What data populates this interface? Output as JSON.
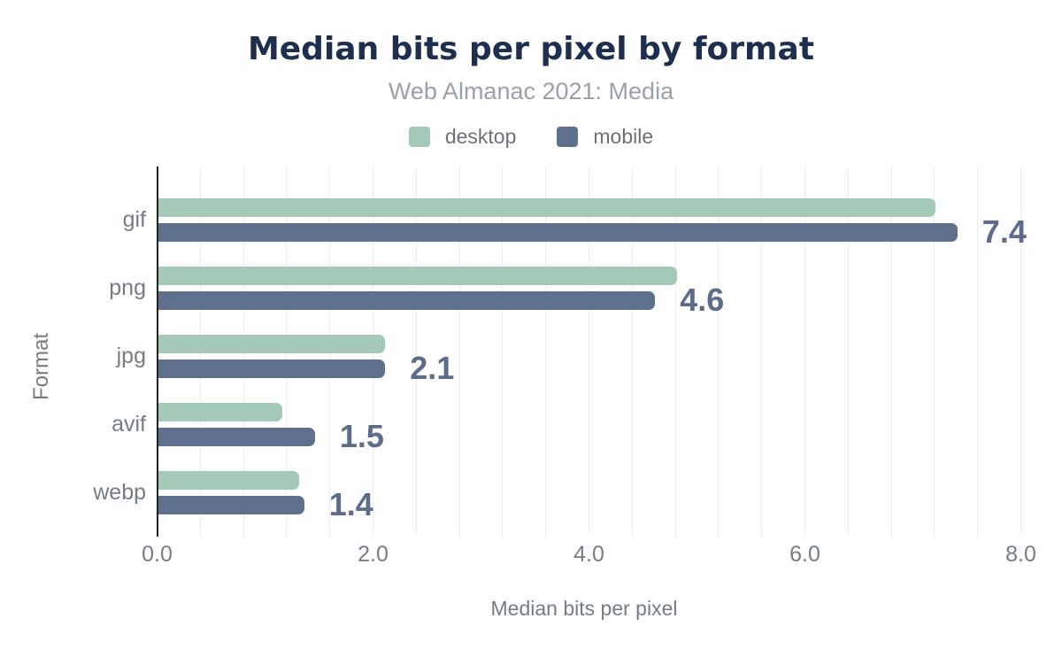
{
  "header": {
    "title": "Median bits per pixel by format",
    "subtitle": "Web Almanac 2021: Media"
  },
  "legend": {
    "items": [
      {
        "label": "desktop",
        "color": "#a4c9b6"
      },
      {
        "label": "mobile",
        "color": "#5f708c"
      }
    ]
  },
  "chart_data": {
    "type": "bar",
    "orientation": "horizontal",
    "title": "Median bits per pixel by format",
    "subtitle": "Web Almanac 2021: Media",
    "xlabel": "Median bits per pixel",
    "ylabel": "Format",
    "categories": [
      "gif",
      "png",
      "jpg",
      "avif",
      "webp"
    ],
    "series": [
      {
        "name": "desktop",
        "color": "#a4c9b6",
        "values": [
          7.2,
          4.8,
          2.1,
          1.15,
          1.3
        ]
      },
      {
        "name": "mobile",
        "color": "#5f708c",
        "values": [
          7.4,
          4.6,
          2.1,
          1.45,
          1.35
        ]
      }
    ],
    "bar_labels": {
      "labeled_series": "mobile",
      "values": [
        "7.4",
        "4.6",
        "2.1",
        "1.5",
        "1.4"
      ]
    },
    "xlim": [
      0,
      8.35
    ],
    "xticks": [
      0,
      2,
      4,
      6,
      8
    ],
    "xtick_labels": [
      "0.0",
      "2.0",
      "4.0",
      "6.0",
      "8.0"
    ],
    "grid": {
      "minor_step": 0.4,
      "vertical": true,
      "horizontal": false
    },
    "legend_position": "top"
  },
  "colors": {
    "background": "#ffffff",
    "title": "#1d2e4e",
    "subtitle": "#9aa1a8",
    "legend_text": "#6b7177",
    "axis_text": "#767c84",
    "value_label": "#5c6c8a",
    "gridline": "#ededef",
    "axis_line": "#1f2327"
  }
}
